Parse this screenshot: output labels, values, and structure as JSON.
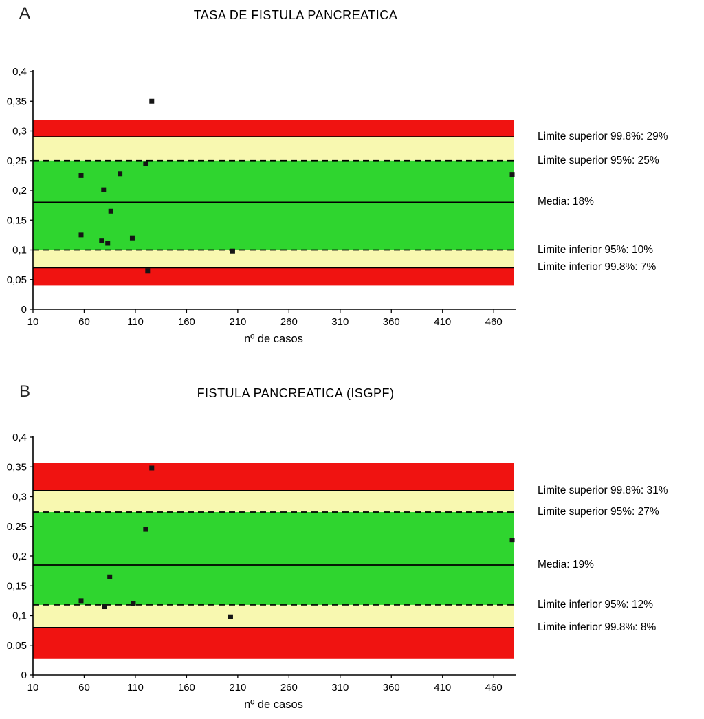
{
  "chart_data": [
    {
      "type": "scatter",
      "panel_letter": "A",
      "title": "TASA DE FISTULA PANCREATICA",
      "xlabel": "nº de casos",
      "ylabel": "",
      "xlim": [
        10,
        480
      ],
      "ylim": [
        0,
        0.4
      ],
      "x_ticks": [
        10,
        60,
        110,
        160,
        210,
        260,
        310,
        360,
        410,
        460
      ],
      "y_ticks": [
        {
          "v": 0,
          "label": "0"
        },
        {
          "v": 0.05,
          "label": "0,05"
        },
        {
          "v": 0.1,
          "label": "0,1"
        },
        {
          "v": 0.15,
          "label": "0,15"
        },
        {
          "v": 0.2,
          "label": "0,2"
        },
        {
          "v": 0.25,
          "label": "0,25"
        },
        {
          "v": 0.3,
          "label": "0,3"
        },
        {
          "v": 0.35,
          "label": "0,35"
        },
        {
          "v": 0.4,
          "label": "0,4"
        }
      ],
      "colors": {
        "red": "#f01311",
        "yellow": "#f8f8b0",
        "green": "#2fd52f",
        "point": "#151515"
      },
      "grid": false,
      "bands": [
        {
          "name": "red-upper",
          "from": 0.29,
          "to": 0.318,
          "color": "red"
        },
        {
          "name": "yellow-upper",
          "from": 0.25,
          "to": 0.29,
          "color": "yellow"
        },
        {
          "name": "green-center",
          "from": 0.1,
          "to": 0.25,
          "color": "green"
        },
        {
          "name": "yellow-lower",
          "from": 0.07,
          "to": 0.1,
          "color": "yellow"
        },
        {
          "name": "red-lower",
          "from": 0.04,
          "to": 0.07,
          "color": "red"
        }
      ],
      "limit_lines": [
        {
          "name": "upper-99.8",
          "value": 0.29,
          "dash": false
        },
        {
          "name": "upper-95",
          "value": 0.25,
          "dash": true
        },
        {
          "name": "mean",
          "value": 0.18,
          "dash": false
        },
        {
          "name": "lower-95",
          "value": 0.1,
          "dash": true
        },
        {
          "name": "lower-99.8",
          "value": 0.07,
          "dash": false
        }
      ],
      "points": [
        [
          126,
          0.35
        ],
        [
          57,
          0.225
        ],
        [
          95,
          0.228
        ],
        [
          79,
          0.201
        ],
        [
          120,
          0.245
        ],
        [
          86,
          0.165
        ],
        [
          57,
          0.125
        ],
        [
          77,
          0.116
        ],
        [
          83,
          0.111
        ],
        [
          107,
          0.12
        ],
        [
          205,
          0.098
        ],
        [
          122,
          0.065
        ],
        [
          478,
          0.227
        ]
      ],
      "annotations": [
        {
          "text": "Limite superior 99.8%: 29%",
          "value": 0.29
        },
        {
          "text": "Limite superior 95%: 25%",
          "value": 0.25
        },
        {
          "text": "Media: 18%",
          "value": 0.18
        },
        {
          "text": "Limite inferior 95%: 10%",
          "value": 0.1
        },
        {
          "text": "Limite inferior 99.8%: 7%",
          "value": 0.07
        }
      ]
    },
    {
      "type": "scatter",
      "panel_letter": "B",
      "title": "FISTULA PANCREATICA (ISGPF)",
      "xlabel": "nº de casos",
      "ylabel": "",
      "xlim": [
        10,
        480
      ],
      "ylim": [
        0,
        0.4
      ],
      "x_ticks": [
        10,
        60,
        110,
        160,
        210,
        260,
        310,
        360,
        410,
        460
      ],
      "y_ticks": [
        {
          "v": 0,
          "label": "0"
        },
        {
          "v": 0.05,
          "label": "0,05"
        },
        {
          "v": 0.1,
          "label": "0,1"
        },
        {
          "v": 0.15,
          "label": "0,15"
        },
        {
          "v": 0.2,
          "label": "0,2"
        },
        {
          "v": 0.25,
          "label": "0,25"
        },
        {
          "v": 0.3,
          "label": "0,3"
        },
        {
          "v": 0.35,
          "label": "0,35"
        },
        {
          "v": 0.4,
          "label": "0,4"
        }
      ],
      "colors": {
        "red": "#f01311",
        "yellow": "#f8f8b0",
        "green": "#2fd52f",
        "point": "#151515"
      },
      "grid": false,
      "bands": [
        {
          "name": "red-upper",
          "from": 0.31,
          "to": 0.357,
          "color": "red"
        },
        {
          "name": "yellow-upper",
          "from": 0.274,
          "to": 0.31,
          "color": "yellow"
        },
        {
          "name": "green-center",
          "from": 0.118,
          "to": 0.274,
          "color": "green"
        },
        {
          "name": "yellow-lower",
          "from": 0.08,
          "to": 0.118,
          "color": "yellow"
        },
        {
          "name": "red-lower",
          "from": 0.028,
          "to": 0.08,
          "color": "red"
        }
      ],
      "limit_lines": [
        {
          "name": "upper-99.8",
          "value": 0.31,
          "dash": false
        },
        {
          "name": "upper-95",
          "value": 0.274,
          "dash": true
        },
        {
          "name": "mean",
          "value": 0.185,
          "dash": false
        },
        {
          "name": "lower-95",
          "value": 0.118,
          "dash": true
        },
        {
          "name": "lower-99.8",
          "value": 0.08,
          "dash": false
        }
      ],
      "points": [
        [
          126,
          0.348
        ],
        [
          120,
          0.245
        ],
        [
          85,
          0.165
        ],
        [
          57,
          0.125
        ],
        [
          80,
          0.115
        ],
        [
          108,
          0.12
        ],
        [
          203,
          0.098
        ],
        [
          478,
          0.227
        ]
      ],
      "annotations": [
        {
          "text": "Limite superior 99.8%: 31%",
          "value": 0.31
        },
        {
          "text": "Limite superior 95%: 27%",
          "value": 0.274
        },
        {
          "text": "Media: 19%",
          "value": 0.185
        },
        {
          "text": "Limite inferior 95%: 12%",
          "value": 0.118
        },
        {
          "text": "Limite inferior 99.8%: 8%",
          "value": 0.08
        }
      ]
    }
  ]
}
